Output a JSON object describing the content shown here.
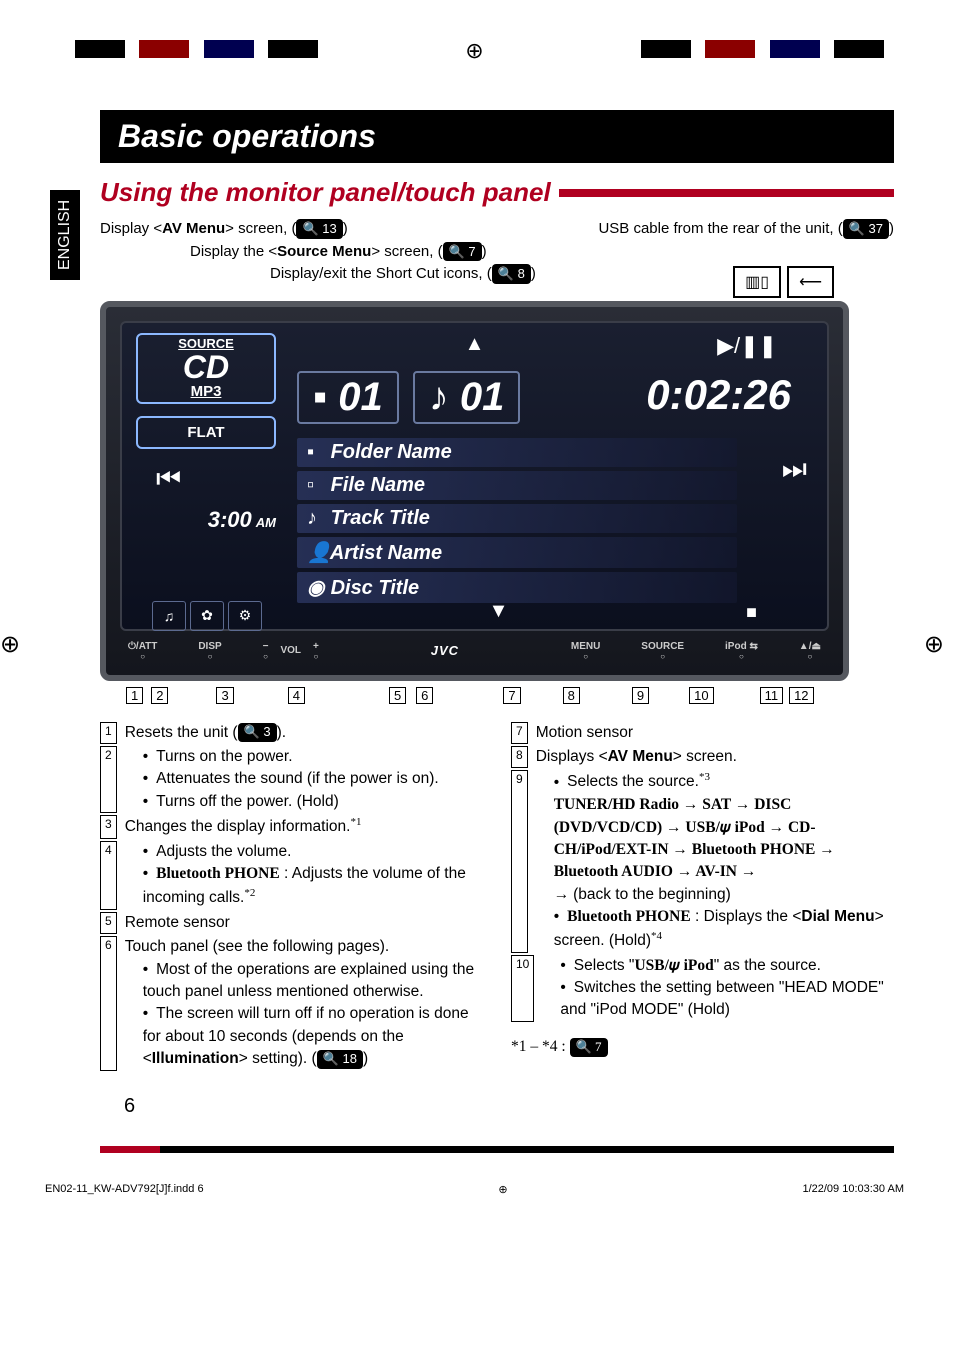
{
  "side_tab": "ENGLISH",
  "h1": "Basic operations",
  "h2": "Using the monitor panel/touch panel",
  "callouts": {
    "av_menu": "Display <",
    "av_menu_bold": "AV Menu",
    "av_menu_after": "> screen, (",
    "av_menu_pg": "13",
    "usb_cable": "USB cable from the rear of the unit, (",
    "usb_pg": "37",
    "source_menu_pre": "Display the <",
    "source_menu_bold": "Source Menu",
    "source_menu_after": "> screen, (",
    "source_menu_pg": "7",
    "shortcut": "Display/exit the Short Cut icons, (",
    "shortcut_pg": "8"
  },
  "device": {
    "source_label": "SOURCE",
    "cd": "CD",
    "mp3": "MP3",
    "flat": "FLAT",
    "clock": "3:00",
    "ampm": "AM",
    "folder_num": "01",
    "track_num": "01",
    "time": "0:02:26",
    "folder_name": "Folder Name",
    "file_name": "File Name",
    "track_title": "Track Title",
    "artist_name": "Artist Name",
    "disc_title": "Disc Title"
  },
  "buttons": {
    "b1": "⏻/ATT",
    "b2": "DISP",
    "b3a": "−",
    "b3l": "VOL",
    "b3b": "+",
    "b4": "JVC",
    "b5": "MENU",
    "b6": "SOURCE",
    "b7": "iPod ⇆",
    "b8": "▲/⏏"
  },
  "pointers": [
    "1",
    "2",
    "3",
    "4",
    "5",
    "6",
    "7",
    "8",
    "9",
    "10",
    "11",
    "12"
  ],
  "pointer_gaps": [
    0,
    6,
    46,
    52,
    82,
    8,
    68,
    40,
    50,
    38,
    44,
    4
  ],
  "left_items": [
    {
      "n": "1",
      "pre": "Resets the unit (",
      "mag": "3",
      "post": ")."
    },
    {
      "n": "2",
      "bullets": [
        "Turns on the power.",
        "Attenuates the sound (if the power is on).",
        "Turns off the power. (Hold)"
      ]
    },
    {
      "n": "3",
      "text": "Changes the display information.",
      "sup": "*1"
    },
    {
      "n": "4",
      "bullets_first": "Adjusts the volume.",
      "bullets_rich": [
        {
          "bold": "Bluetooth PHONE",
          "rest": " : Adjusts the volume of the incoming calls.",
          "sup": "*2"
        }
      ]
    },
    {
      "n": "5",
      "text": "Remote sensor"
    },
    {
      "n": "6",
      "text": "Touch panel (see the following pages).",
      "bullets_plain": [
        "Most of the operations are explained using the touch panel unless mentioned otherwise."
      ],
      "bullets_rich2": [
        {
          "pre": "The screen will turn off if no operation is done for about 10 seconds (depends on the <",
          "bold": "Illumination",
          "post": "> setting). (",
          "mag": "18",
          "end": ")"
        }
      ]
    }
  ],
  "right_items": [
    {
      "n": "7",
      "text": "Motion sensor"
    },
    {
      "n": "8",
      "pre": "Displays <",
      "bold": "AV Menu",
      "post": "> screen."
    },
    {
      "n": "9",
      "first_bullet": {
        "pre": "Selects the source.",
        "sup": "*3"
      },
      "flow": "TUNER/HD Radio → SAT → DISC (DVD/VCD/CD) → USB/𝜓 iPod → CD-CH/iPod/EXT-IN → Bluetooth PHONE → Bluetooth AUDIO → AV-IN → ",
      "flow_tail": "(back to the beginning)",
      "bullets_rich": [
        {
          "bold": "Bluetooth PHONE",
          "rest": " : Displays the <",
          "bold2": "Dial Menu",
          "rest2": "> screen. (Hold)",
          "sup": "*4"
        }
      ]
    },
    {
      "n": "10",
      "bullets_rich": [
        {
          "pre": "Selects \"",
          "bold": "USB/𝜓 iPod",
          "post": "\" as the source."
        }
      ],
      "bullets_plain": [
        "Switches the setting between \"HEAD MODE\" and \"iPod MODE\" (Hold)"
      ]
    }
  ],
  "footnote_ref": {
    "pre": "*1 – *4 : ",
    "mag": "7"
  },
  "page_number": "6",
  "footer_left": "EN02-11_KW-ADV792[J]f.indd   6",
  "footer_right": "1/22/09   10:03:30 AM"
}
